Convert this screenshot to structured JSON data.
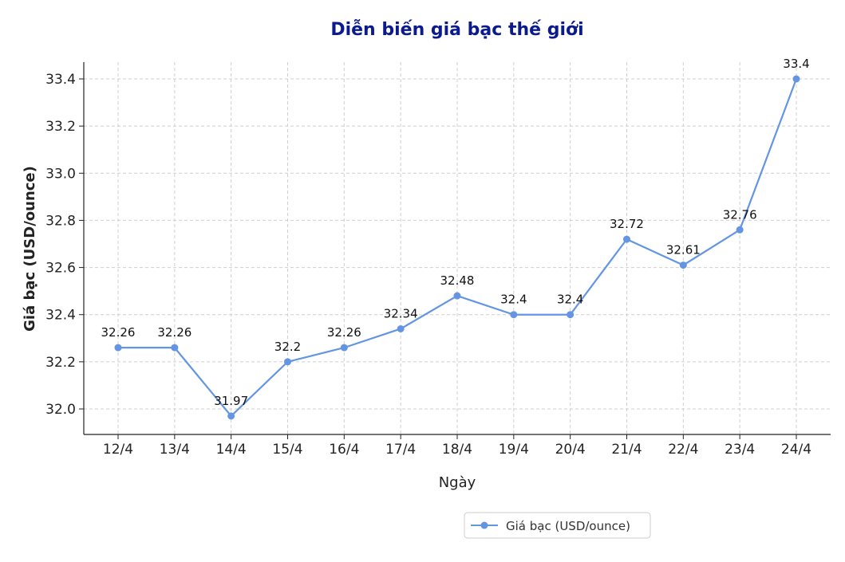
{
  "chart_data": {
    "type": "line",
    "title": "Diễn biến giá bạc thế giới",
    "xlabel": "Ngày",
    "ylabel": "Giá bạc (USD/ounce)",
    "categories": [
      "12/4",
      "13/4",
      "14/4",
      "15/4",
      "16/4",
      "17/4",
      "18/4",
      "19/4",
      "20/4",
      "21/4",
      "22/4",
      "23/4",
      "24/4"
    ],
    "series": [
      {
        "name": "Giá bạc (USD/ounce)",
        "values": [
          32.26,
          32.26,
          31.97,
          32.2,
          32.26,
          32.34,
          32.48,
          32.4,
          32.4,
          32.72,
          32.61,
          32.76,
          33.4
        ],
        "labels": [
          "32.26",
          "32.26",
          "31.97",
          "32.2",
          "32.26",
          "32.34",
          "32.48",
          "32.4",
          "32.4",
          "32.72",
          "32.61",
          "32.76",
          "33.4"
        ]
      }
    ],
    "yticks": [
      "32.0",
      "32.2",
      "32.4",
      "32.6",
      "32.8",
      "33.0",
      "33.2",
      "33.4"
    ],
    "ylim": [
      31.9,
      33.46
    ],
    "grid": true,
    "legend_position": "bottom-center",
    "colors": {
      "line": "#6395e3",
      "title": "#0b1a8c"
    }
  }
}
